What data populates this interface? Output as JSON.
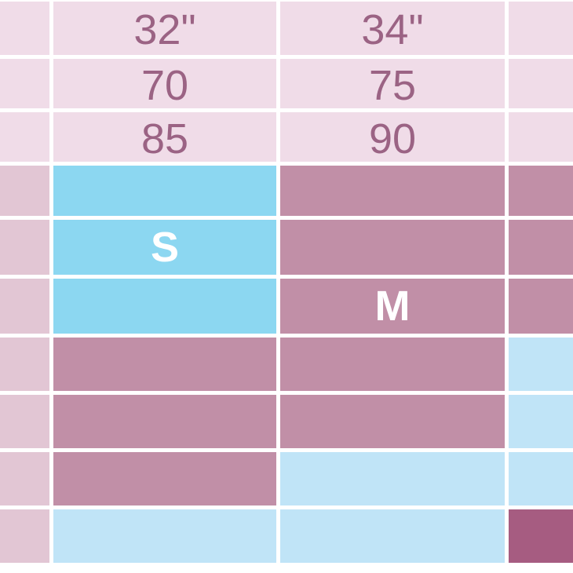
{
  "colors": {
    "pink_light": "#f0dce8",
    "pink_med": "#e2c6d4",
    "cyan": "#8cd7f1",
    "mauve": "#c18fa7",
    "blue_pale": "#c0e4f7",
    "plum_dark": "#a65c81",
    "gridline": "#ffffff",
    "header_text": "#9b6384",
    "size_text": "#ffffff"
  },
  "chart_data": {
    "type": "table",
    "columns": 4,
    "header_rows": [
      [
        "32\"",
        "34\""
      ],
      [
        "70",
        "75"
      ],
      [
        "85",
        "90"
      ]
    ],
    "size_labels": [
      "S",
      "M"
    ],
    "rows": [
      {
        "cells": [
          {
            "color": "pink_light",
            "label": ""
          },
          {
            "color": "pink_light",
            "label": "32\""
          },
          {
            "color": "pink_light",
            "label": "34\""
          },
          {
            "color": "pink_light",
            "label": ""
          }
        ]
      },
      {
        "cells": [
          {
            "color": "pink_light",
            "label": ""
          },
          {
            "color": "pink_light",
            "label": "70"
          },
          {
            "color": "pink_light",
            "label": "75"
          },
          {
            "color": "pink_light",
            "label": ""
          }
        ]
      },
      {
        "cells": [
          {
            "color": "pink_light",
            "label": ""
          },
          {
            "color": "pink_light",
            "label": "85"
          },
          {
            "color": "pink_light",
            "label": "90"
          },
          {
            "color": "pink_light",
            "label": ""
          }
        ]
      },
      {
        "cells": [
          {
            "color": "pink_med",
            "label": ""
          },
          {
            "color": "cyan",
            "label": ""
          },
          {
            "color": "mauve",
            "label": ""
          },
          {
            "color": "mauve",
            "label": ""
          }
        ]
      },
      {
        "cells": [
          {
            "color": "pink_med",
            "label": ""
          },
          {
            "color": "cyan",
            "label": "S"
          },
          {
            "color": "mauve",
            "label": ""
          },
          {
            "color": "mauve",
            "label": ""
          }
        ]
      },
      {
        "cells": [
          {
            "color": "pink_med",
            "label": ""
          },
          {
            "color": "cyan",
            "label": ""
          },
          {
            "color": "mauve",
            "label": "M"
          },
          {
            "color": "mauve",
            "label": ""
          }
        ]
      },
      {
        "cells": [
          {
            "color": "pink_med",
            "label": ""
          },
          {
            "color": "mauve",
            "label": ""
          },
          {
            "color": "mauve",
            "label": ""
          },
          {
            "color": "blue_pale",
            "label": ""
          }
        ]
      },
      {
        "cells": [
          {
            "color": "pink_med",
            "label": ""
          },
          {
            "color": "mauve",
            "label": ""
          },
          {
            "color": "mauve",
            "label": ""
          },
          {
            "color": "blue_pale",
            "label": ""
          }
        ]
      },
      {
        "cells": [
          {
            "color": "pink_med",
            "label": ""
          },
          {
            "color": "mauve",
            "label": ""
          },
          {
            "color": "blue_pale",
            "label": ""
          },
          {
            "color": "blue_pale",
            "label": ""
          }
        ]
      },
      {
        "cells": [
          {
            "color": "pink_med",
            "label": ""
          },
          {
            "color": "blue_pale",
            "label": ""
          },
          {
            "color": "blue_pale",
            "label": ""
          },
          {
            "color": "plum_dark",
            "label": ""
          }
        ]
      }
    ]
  }
}
